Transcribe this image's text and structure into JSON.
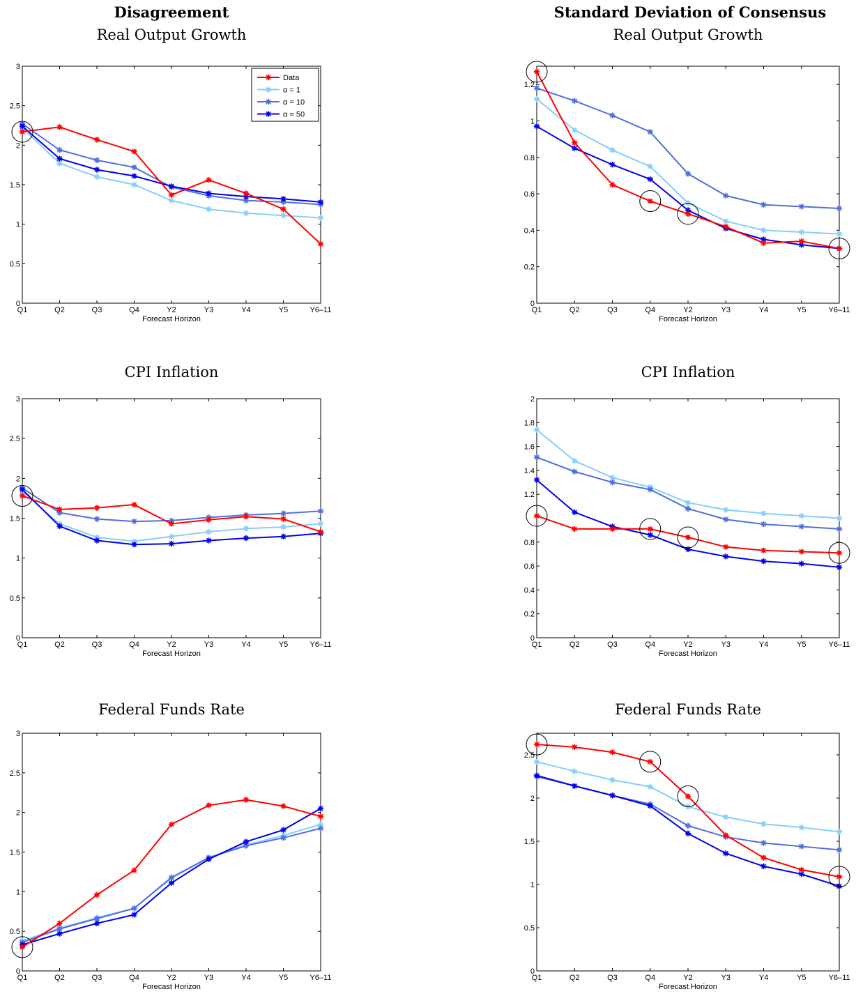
{
  "columns": [
    "Disagreement",
    "Standard Deviation of Consensus"
  ],
  "legend": {
    "entries": [
      "Data",
      "α = 1",
      "α = 10",
      "α = 50"
    ],
    "colors": [
      "#ff0000",
      "#87cefa",
      "#4f6fe0",
      "#0000ee"
    ]
  },
  "chart_data": [
    {
      "type": "line",
      "column": "Disagreement",
      "title": "Real Output Growth",
      "xlabel": "Forecast Horizon",
      "ylabel": "",
      "categories": [
        "Q1",
        "Q2",
        "Q3",
        "Q4",
        "Y2",
        "Y3",
        "Y4",
        "Y5",
        "Y6–11"
      ],
      "ylim": [
        0,
        3
      ],
      "yticks": [
        0,
        0.5,
        1,
        1.5,
        2,
        2.5,
        3
      ],
      "ytick_labels": [
        "0",
        "0.5",
        "1",
        "1.5",
        "2",
        "2.5",
        "3"
      ],
      "legend": "top-right",
      "series": [
        {
          "name": "Data",
          "color": "#ff0000",
          "values": [
            2.17,
            2.23,
            2.07,
            1.92,
            1.37,
            1.56,
            1.39,
            1.19,
            0.75
          ]
        },
        {
          "name": "α = 1",
          "color": "#87cefa",
          "values": [
            2.22,
            1.77,
            1.6,
            1.5,
            1.3,
            1.19,
            1.14,
            1.11,
            1.08
          ]
        },
        {
          "name": "α = 10",
          "color": "#4f6fe0",
          "values": [
            2.27,
            1.94,
            1.81,
            1.72,
            1.47,
            1.36,
            1.3,
            1.28,
            1.25
          ]
        },
        {
          "name": "α = 50",
          "color": "#0000ee",
          "values": [
            2.24,
            1.83,
            1.69,
            1.61,
            1.48,
            1.39,
            1.35,
            1.32,
            1.28
          ]
        }
      ],
      "circled": [
        0
      ]
    },
    {
      "type": "line",
      "column": "Standard Deviation of Consensus",
      "title": "Real Output Growth",
      "xlabel": "Forecast Horizon",
      "ylabel": "",
      "categories": [
        "Q1",
        "Q2",
        "Q3",
        "Q4",
        "Y2",
        "Y3",
        "Y4",
        "Y5",
        "Y6–11"
      ],
      "ylim": [
        0,
        1.3
      ],
      "yticks": [
        0,
        0.2,
        0.4,
        0.6,
        0.8,
        1,
        1.2
      ],
      "ytick_labels": [
        "0",
        "0.2",
        "0.4",
        "0.6",
        "0.8",
        "1",
        "1.2"
      ],
      "series": [
        {
          "name": "Data",
          "color": "#ff0000",
          "values": [
            1.27,
            0.88,
            0.65,
            0.56,
            0.49,
            0.42,
            0.33,
            0.34,
            0.3
          ]
        },
        {
          "name": "α = 1",
          "color": "#87cefa",
          "values": [
            1.12,
            0.95,
            0.84,
            0.75,
            0.55,
            0.45,
            0.4,
            0.39,
            0.38
          ]
        },
        {
          "name": "α = 10",
          "color": "#4f6fe0",
          "values": [
            1.18,
            1.11,
            1.03,
            0.94,
            0.71,
            0.59,
            0.54,
            0.53,
            0.52
          ]
        },
        {
          "name": "α = 50",
          "color": "#0000ee",
          "values": [
            0.97,
            0.85,
            0.76,
            0.68,
            0.51,
            0.41,
            0.35,
            0.32,
            0.3
          ]
        }
      ],
      "circled": [
        0,
        3,
        4,
        8
      ]
    },
    {
      "type": "line",
      "column": "Disagreement",
      "title": "CPI Inflation",
      "xlabel": "Forecast Horizon",
      "ylabel": "",
      "categories": [
        "Q1",
        "Q2",
        "Q3",
        "Q4",
        "Y2",
        "Y3",
        "Y4",
        "Y5",
        "Y6–11"
      ],
      "ylim": [
        0,
        3
      ],
      "yticks": [
        0,
        0.5,
        1,
        1.5,
        2,
        2.5,
        3
      ],
      "ytick_labels": [
        "0",
        "0.5",
        "1",
        "1.5",
        "2",
        "2.5",
        "3"
      ],
      "series": [
        {
          "name": "Data",
          "color": "#ff0000",
          "values": [
            1.78,
            1.61,
            1.63,
            1.67,
            1.43,
            1.48,
            1.52,
            1.49,
            1.33
          ]
        },
        {
          "name": "α = 1",
          "color": "#87cefa",
          "values": [
            1.83,
            1.43,
            1.26,
            1.21,
            1.27,
            1.33,
            1.37,
            1.39,
            1.43
          ]
        },
        {
          "name": "α = 10",
          "color": "#4f6fe0",
          "values": [
            1.88,
            1.57,
            1.49,
            1.46,
            1.47,
            1.51,
            1.54,
            1.56,
            1.59
          ]
        },
        {
          "name": "α = 50",
          "color": "#0000ee",
          "values": [
            1.86,
            1.4,
            1.22,
            1.17,
            1.18,
            1.22,
            1.25,
            1.27,
            1.31
          ]
        }
      ],
      "circled": [
        0
      ]
    },
    {
      "type": "line",
      "column": "Standard Deviation of Consensus",
      "title": "CPI Inflation",
      "xlabel": "Forecast Horizon",
      "ylabel": "",
      "categories": [
        "Q1",
        "Q2",
        "Q3",
        "Q4",
        "Y2",
        "Y3",
        "Y4",
        "Y5",
        "Y6–11"
      ],
      "ylim": [
        0,
        2
      ],
      "yticks": [
        0,
        0.2,
        0.4,
        0.6,
        0.8,
        1.2,
        1.4,
        1.6,
        1.8,
        2
      ],
      "ytick_labels": [
        "0",
        "0.2",
        "0.4",
        "0.6",
        "0.8",
        "1.2",
        "1.4",
        "1.6",
        "1.8",
        "2"
      ],
      "series": [
        {
          "name": "Data",
          "color": "#ff0000",
          "values": [
            1.02,
            0.91,
            0.91,
            0.91,
            0.84,
            0.76,
            0.73,
            0.72,
            0.71
          ]
        },
        {
          "name": "α = 1",
          "color": "#87cefa",
          "values": [
            1.74,
            1.48,
            1.34,
            1.26,
            1.13,
            1.07,
            1.04,
            1.02,
            1.0
          ]
        },
        {
          "name": "α = 10",
          "color": "#4f6fe0",
          "values": [
            1.51,
            1.39,
            1.3,
            1.24,
            1.08,
            0.99,
            0.95,
            0.93,
            0.91
          ]
        },
        {
          "name": "α = 50",
          "color": "#0000ee",
          "values": [
            1.32,
            1.05,
            0.93,
            0.86,
            0.74,
            0.68,
            0.64,
            0.62,
            0.59
          ]
        }
      ],
      "circled": [
        0,
        3,
        4,
        8
      ]
    },
    {
      "type": "line",
      "column": "Disagreement",
      "title": "Federal Funds Rate",
      "xlabel": "Forecast Horizon",
      "ylabel": "",
      "categories": [
        "Q1",
        "Q2",
        "Q3",
        "Q4",
        "Y2",
        "Y3",
        "Y4",
        "Y5",
        "Y6–11"
      ],
      "ylim": [
        0,
        3
      ],
      "yticks": [
        0,
        0.5,
        1,
        1.5,
        2,
        2.5,
        3
      ],
      "ytick_labels": [
        "0",
        "0.5",
        "1",
        "1.5",
        "2",
        "2.5",
        "3"
      ],
      "series": [
        {
          "name": "Data",
          "color": "#ff0000",
          "values": [
            0.3,
            0.6,
            0.96,
            1.27,
            1.85,
            2.09,
            2.16,
            2.08,
            1.95
          ]
        },
        {
          "name": "α = 1",
          "color": "#87cefa",
          "values": [
            0.38,
            0.54,
            0.67,
            0.79,
            1.17,
            1.43,
            1.59,
            1.71,
            1.85
          ]
        },
        {
          "name": "α = 10",
          "color": "#4f6fe0",
          "values": [
            0.36,
            0.53,
            0.66,
            0.79,
            1.18,
            1.43,
            1.58,
            1.68,
            1.8
          ]
        },
        {
          "name": "α = 50",
          "color": "#0000ee",
          "values": [
            0.33,
            0.47,
            0.6,
            0.71,
            1.11,
            1.41,
            1.63,
            1.78,
            2.05
          ]
        }
      ],
      "circled": [
        0
      ]
    },
    {
      "type": "line",
      "column": "Standard Deviation of Consensus",
      "title": "Federal Funds Rate",
      "xlabel": "Forecast Horizon",
      "ylabel": "",
      "categories": [
        "Q1",
        "Q2",
        "Q3",
        "Q4",
        "Y2",
        "Y3",
        "Y4",
        "Y5",
        "Y6–11"
      ],
      "ylim": [
        0,
        2.75
      ],
      "yticks": [
        0,
        0.5,
        1,
        1.5,
        2,
        2.5
      ],
      "ytick_labels": [
        "0",
        "0.5",
        "1",
        "1.5",
        "2",
        "2.5"
      ],
      "series": [
        {
          "name": "Data",
          "color": "#ff0000",
          "values": [
            2.62,
            2.59,
            2.53,
            2.42,
            2.02,
            1.57,
            1.31,
            1.17,
            1.09
          ]
        },
        {
          "name": "α = 1",
          "color": "#87cefa",
          "values": [
            2.42,
            2.31,
            2.21,
            2.13,
            1.9,
            1.78,
            1.7,
            1.66,
            1.61
          ]
        },
        {
          "name": "α = 10",
          "color": "#4f6fe0",
          "values": [
            2.25,
            2.14,
            2.03,
            1.93,
            1.68,
            1.55,
            1.48,
            1.44,
            1.4
          ]
        },
        {
          "name": "α = 50",
          "color": "#0000ee",
          "values": [
            2.26,
            2.14,
            2.03,
            1.91,
            1.59,
            1.36,
            1.21,
            1.12,
            0.98
          ]
        }
      ],
      "circled": [
        0,
        3,
        4,
        8
      ]
    }
  ]
}
